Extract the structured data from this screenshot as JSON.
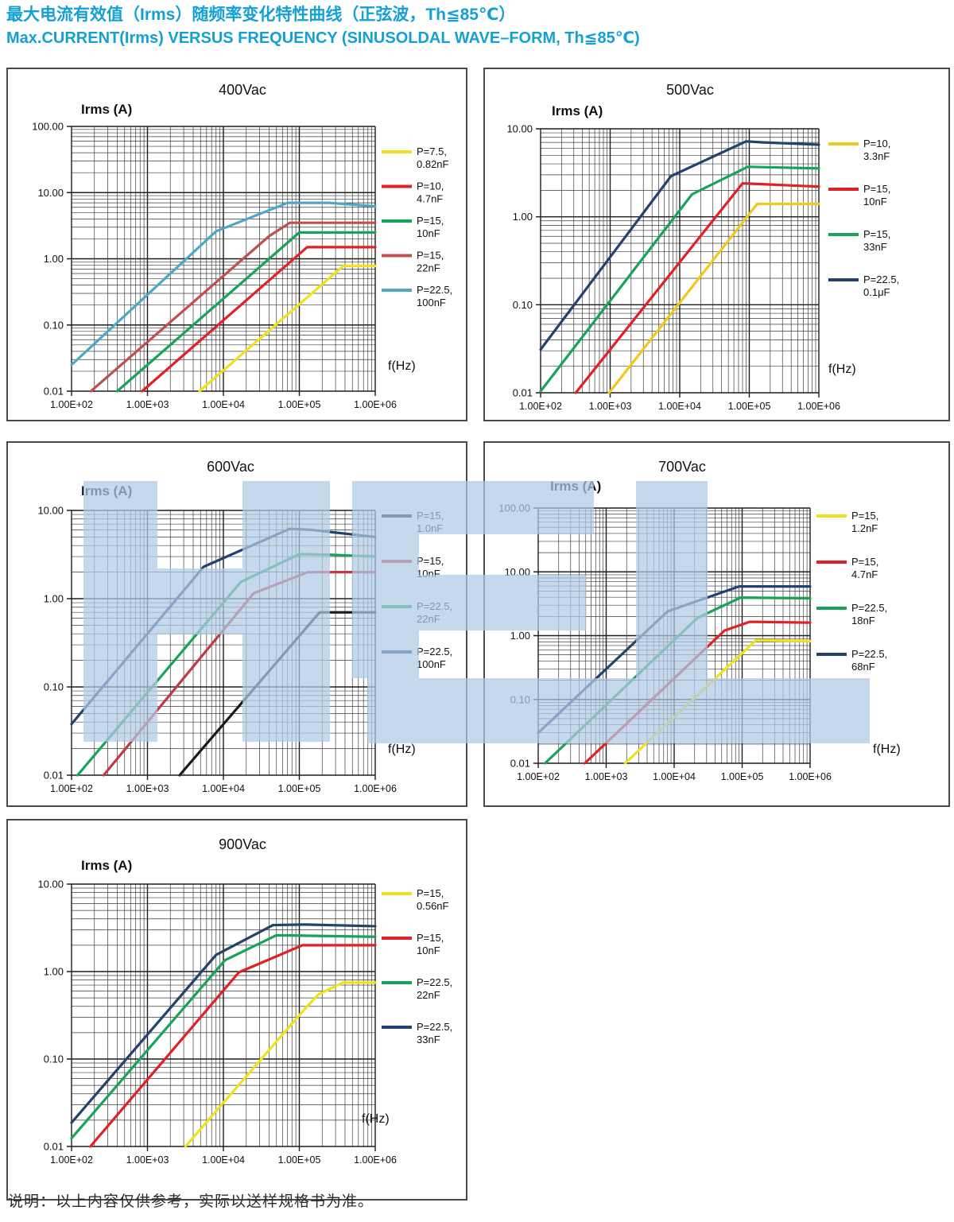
{
  "page": {
    "title_zh": "最大电流有效值（Irms）随频率变化特性曲线（正弦波，Th≦85℃）",
    "title_en": "Max.CURRENT(Irms) VERSUS FREQUENCY (SINUSOLDAL WAVE–FORM, Th≦85℃)",
    "title_color": "#14a0d4",
    "footnote": "说明：以上内容仅供参考，实际以送样规格书为准。",
    "watermark_color": "rgba(176,203,229,0.72)"
  },
  "chart_data": [
    {
      "type": "line",
      "title": "400Vac",
      "ylabel": "Irms (A)",
      "xlabel": "f(Hz)",
      "xlim": [
        100,
        1000000
      ],
      "ylim": [
        0.01,
        100
      ],
      "x_ticks": [
        "1.00E+02",
        "1.00E+03",
        "1.00E+04",
        "1.00E+05",
        "1.00E+06"
      ],
      "y_ticks": [
        "100.00",
        "10.00",
        "1.00",
        "0.10",
        "0.01"
      ],
      "grid": "log-log",
      "legend_position": "right",
      "series": [
        {
          "name": "P=7.5, 0.82nF",
          "label_lines": [
            "P=7.5,",
            "0.82nF"
          ],
          "color": "#f0e11c",
          "points": [
            [
              4850,
              0.01
            ],
            [
              380000,
              0.78
            ],
            [
              1000000,
              0.78
            ]
          ]
        },
        {
          "name": "P=10, 4.7nF",
          "label_lines": [
            "P=10,",
            "4.7nF"
          ],
          "color": "#e02125",
          "points": [
            [
              850,
              0.01
            ],
            [
              127000,
              1.5
            ],
            [
              1000000,
              1.5
            ]
          ]
        },
        {
          "name": "P=15, 10nF",
          "label_lines": [
            "P=15,",
            "10nF"
          ],
          "color": "#19a35a",
          "points": [
            [
              400,
              0.01
            ],
            [
              100000,
              2.5
            ],
            [
              1000000,
              2.5
            ]
          ]
        },
        {
          "name": "P=15, 22nF",
          "label_lines": [
            "P=15,",
            "22nF"
          ],
          "color": "#c0504d",
          "points": [
            [
              180,
              0.01
            ],
            [
              40000,
              2.2
            ],
            [
              75000,
              3.5
            ],
            [
              1000000,
              3.5
            ]
          ]
        },
        {
          "name": "P=22.5, 100nF",
          "label_lines": [
            "P=22.5,",
            "100nF"
          ],
          "color": "#4da7c6",
          "points": [
            [
              100,
              0.025
            ],
            [
              8000,
              2.6
            ],
            [
              70000,
              7.0
            ],
            [
              250000,
              7.0
            ],
            [
              1000000,
              6.2
            ]
          ]
        }
      ]
    },
    {
      "type": "line",
      "title": "500Vac",
      "ylabel": "Irms (A)",
      "xlabel": "f(Hz)",
      "xlim": [
        100,
        1000000
      ],
      "ylim": [
        0.01,
        10
      ],
      "x_ticks": [
        "1.00E+02",
        "1.00E+03",
        "1.00E+04",
        "1.00E+05",
        "1.00E+06"
      ],
      "y_ticks": [
        "10.00",
        "1.00",
        "0.10",
        "0.01"
      ],
      "grid": "log-log",
      "legend_position": "right",
      "series": [
        {
          "name": "P=10, 3.3nF",
          "label_lines": [
            "P=10,",
            "3.3nF"
          ],
          "color": "#f0c81c",
          "points": [
            [
              965,
              0.01
            ],
            [
              130000,
              1.4
            ],
            [
              1000000,
              1.4
            ]
          ]
        },
        {
          "name": "P=15, 10nF",
          "label_lines": [
            "P=15,",
            "10nF"
          ],
          "color": "#e02125",
          "points": [
            [
              320,
              0.01
            ],
            [
              80000,
              2.4
            ],
            [
              150000,
              2.35
            ],
            [
              1000000,
              2.2
            ]
          ]
        },
        {
          "name": "P=15, 33nF",
          "label_lines": [
            "P=15,",
            "33nF"
          ],
          "color": "#19a35a",
          "points": [
            [
              100,
              0.0104
            ],
            [
              15000,
              1.8
            ],
            [
              95000,
              3.7
            ],
            [
              200000,
              3.65
            ],
            [
              1000000,
              3.55
            ]
          ]
        },
        {
          "name": "P=22.5, 0.1μF",
          "label_lines": [
            "P=22.5,",
            "0.1μF"
          ],
          "color": "#24426e",
          "points": [
            [
              100,
              0.031
            ],
            [
              7500,
              2.9
            ],
            [
              90000,
              7.2
            ],
            [
              160000,
              7.0
            ],
            [
              1000000,
              6.6
            ]
          ]
        }
      ]
    },
    {
      "type": "line",
      "title": "600Vac",
      "ylabel": "Irms (A)",
      "xlabel": "f(Hz)",
      "xlim": [
        100,
        1000000
      ],
      "ylim": [
        0.01,
        10
      ],
      "x_ticks": [
        "1.00E+02",
        "1.00E+03",
        "1.00E+04",
        "1.00E+05",
        "1.00E+06"
      ],
      "y_ticks": [
        "10.00",
        "1.00",
        "0.10",
        "0.01"
      ],
      "grid": "log-log",
      "legend_position": "right",
      "series": [
        {
          "name": "P=15, 1.0nF",
          "label_lines": [
            "P=15,",
            "1.0nF"
          ],
          "color": "#1a1a1a",
          "points": [
            [
              2650,
              0.01
            ],
            [
              185000,
              0.7
            ],
            [
              1000000,
              0.7
            ]
          ]
        },
        {
          "name": "P=15, 10nF",
          "label_lines": [
            "P=15,",
            "10nF"
          ],
          "color": "#c03a45",
          "points": [
            [
              265,
              0.01
            ],
            [
              25000,
              1.15
            ],
            [
              130000,
              2.0
            ],
            [
              1000000,
              2.0
            ]
          ]
        },
        {
          "name": "P=22.5, 22nF",
          "label_lines": [
            "P=22.5,",
            "22nF"
          ],
          "color": "#19a35a",
          "points": [
            [
              120,
              0.01
            ],
            [
              17000,
              1.55
            ],
            [
              100000,
              3.2
            ],
            [
              250000,
              3.15
            ],
            [
              1000000,
              3.0
            ]
          ]
        },
        {
          "name": "P=22.5, 100nF",
          "label_lines": [
            "P=22.5,",
            "100nF"
          ],
          "color": "#24426e",
          "points": [
            [
              100,
              0.038
            ],
            [
              5500,
              2.3
            ],
            [
              75000,
              6.2
            ],
            [
              150000,
              6.0
            ],
            [
              1000000,
              5.0
            ]
          ]
        }
      ]
    },
    {
      "type": "line",
      "title": "700Vac",
      "ylabel": "Irms (A)",
      "xlabel": "f(Hz)",
      "xlim": [
        100,
        1000000
      ],
      "ylim": [
        0.01,
        100
      ],
      "x_ticks": [
        "1.00E+02",
        "1.00E+03",
        "1.00E+04",
        "1.00E+05",
        "1.00E+06"
      ],
      "y_ticks": [
        "100.00",
        "10.00",
        "1.00",
        "0.10",
        "0.01"
      ],
      "grid": "log-log",
      "legend_position": "right",
      "series": [
        {
          "name": "P=15, 1.2nF",
          "label_lines": [
            "P=15,",
            "1.2nF"
          ],
          "color": "#f0e11c",
          "points": [
            [
              1900,
              0.01
            ],
            [
              160000,
              0.85
            ],
            [
              1000000,
              0.82
            ]
          ]
        },
        {
          "name": "P=15, 4.7nF",
          "label_lines": [
            "P=15,",
            "4.7nF"
          ],
          "color": "#e02125",
          "points": [
            [
              485,
              0.01
            ],
            [
              55000,
              1.2
            ],
            [
              130000,
              1.65
            ],
            [
              1000000,
              1.6
            ]
          ]
        },
        {
          "name": "P=22.5, 18nF",
          "label_lines": [
            "P=22.5,",
            "18nF"
          ],
          "color": "#19a35a",
          "points": [
            [
              126,
              0.01
            ],
            [
              22000,
              1.9
            ],
            [
              95000,
              3.95
            ],
            [
              1000000,
              3.85
            ]
          ]
        },
        {
          "name": "P=22.5, 68nF",
          "label_lines": [
            "P=22.5,",
            "68nF"
          ],
          "color": "#24426e",
          "points": [
            [
              100,
              0.03
            ],
            [
              8000,
              2.4
            ],
            [
              90000,
              5.9
            ],
            [
              1000000,
              5.9
            ]
          ]
        }
      ]
    },
    {
      "type": "line",
      "title": "900Vac",
      "ylabel": "Irms (A)",
      "xlabel": "f(Hz)",
      "xlim": [
        100,
        1000000
      ],
      "ylim": [
        0.01,
        10
      ],
      "x_ticks": [
        "1.00E+02",
        "1.00E+03",
        "1.00E+04",
        "1.00E+05",
        "1.00E+06"
      ],
      "y_ticks": [
        "10.00",
        "1.00",
        "0.10",
        "0.01"
      ],
      "grid": "log-log",
      "legend_position": "right",
      "series": [
        {
          "name": "P=15, 0.56nF",
          "label_lines": [
            "P=15,",
            "0.56nF"
          ],
          "color": "#f0e11c",
          "points": [
            [
              3160,
              0.01
            ],
            [
              120000,
              0.38
            ],
            [
              180000,
              0.55
            ],
            [
              380000,
              0.75
            ],
            [
              1000000,
              0.75
            ]
          ]
        },
        {
          "name": "P=15, 10nF",
          "label_lines": [
            "P=15,",
            "10nF"
          ],
          "color": "#e02125",
          "points": [
            [
              177,
              0.01
            ],
            [
              16000,
              0.98
            ],
            [
              110000,
              2.0
            ],
            [
              1000000,
              2.0
            ]
          ]
        },
        {
          "name": "P=22.5, 22nF",
          "label_lines": [
            "P=22.5,",
            "22nF"
          ],
          "color": "#19a35a",
          "points": [
            [
              100,
              0.0124
            ],
            [
              10500,
              1.35
            ],
            [
              50000,
              2.6
            ],
            [
              1000000,
              2.5
            ]
          ]
        },
        {
          "name": "P=22.5, 33nF",
          "label_lines": [
            "P=22.5,",
            "33nF"
          ],
          "color": "#24426e",
          "points": [
            [
              100,
              0.0187
            ],
            [
              8000,
              1.55
            ],
            [
              45000,
              3.4
            ],
            [
              120000,
              3.45
            ],
            [
              1000000,
              3.3
            ]
          ]
        }
      ]
    }
  ]
}
